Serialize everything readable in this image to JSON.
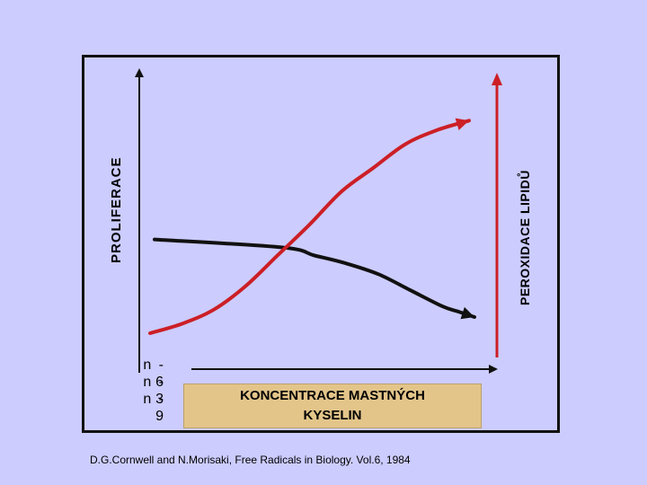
{
  "chart_data": {
    "type": "line",
    "title": "",
    "xlabel": "KONCENTRACE  MASTNÝCH KYSELIN",
    "ylabel_left": "PROLIFERACE",
    "ylabel_right": "PEROXIDACE  LIPIDŮ",
    "fatty_acid_classes": [
      "n - 6",
      "n - 3",
      "n - 9"
    ],
    "series": [
      {
        "axis": "left",
        "color": "#111111",
        "x": [
          0,
          0.4,
          0.5,
          0.6,
          0.7,
          0.8,
          0.9,
          0.95,
          1.0
        ],
        "y": [
          0.58,
          0.52,
          0.46,
          0.4,
          0.32,
          0.2,
          0.08,
          0.04,
          0.0
        ]
      },
      {
        "axis": "right",
        "color": "#cc1f26",
        "x": [
          0,
          0.1,
          0.2,
          0.3,
          0.4,
          0.5,
          0.6,
          0.7,
          0.8,
          0.9,
          1.0
        ],
        "y": [
          0.0,
          0.04,
          0.1,
          0.2,
          0.33,
          0.46,
          0.6,
          0.7,
          0.8,
          0.86,
          0.9
        ]
      }
    ],
    "grid": false,
    "legend": "none"
  },
  "citation": "D.G.Cornwell and  N.Morisaki, Free Radicals in Biology. Vol.6, 1984",
  "colors": {
    "background": "#ccccff",
    "axis": "#111111",
    "red_axis": "#cc1f26",
    "label_box": "#e3c58a"
  }
}
